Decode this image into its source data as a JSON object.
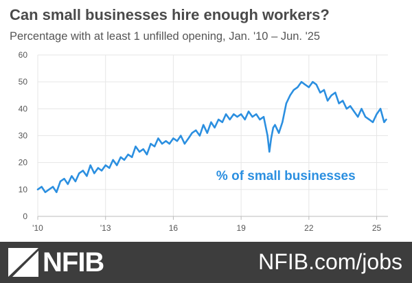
{
  "header": {
    "title": "Can small businesses hire enough workers?",
    "subtitle": "Percentage with at least 1 unfilled opening, Jan. '10 –  Jun. '25"
  },
  "footer": {
    "brand": "NFIB",
    "link": "NFIB.com/jobs"
  },
  "colors": {
    "line": "#2b8fe0",
    "grid": "#e6e6e6",
    "axis_text": "#555555",
    "footer_bg": "#3d3d3d"
  },
  "chart_data": {
    "type": "line",
    "title": "Can small businesses hire enough workers?",
    "subtitle": "Percentage with at least 1 unfilled opening, Jan. '10 –  Jun. '25",
    "xlabel": "",
    "ylabel": "",
    "ylim": [
      0,
      60
    ],
    "xlim": [
      2010,
      2025.5
    ],
    "yticks": [
      0,
      10,
      20,
      30,
      40,
      50,
      60
    ],
    "xticks": [
      {
        "value": 2010,
        "label": "'10"
      },
      {
        "value": 2013,
        "label": "'13"
      },
      {
        "value": 2016,
        "label": "16"
      },
      {
        "value": 2019,
        "label": "19"
      },
      {
        "value": 2022,
        "label": "22"
      },
      {
        "value": 2025,
        "label": "25"
      }
    ],
    "grid": true,
    "legend": "none",
    "annotations": [
      {
        "text": "% of small businesses",
        "x": 2017.9,
        "y": 13.5
      }
    ],
    "series": [
      {
        "name": "% of small businesses",
        "x": [
          2010.0,
          2010.17,
          2010.33,
          2010.5,
          2010.67,
          2010.83,
          2011.0,
          2011.17,
          2011.33,
          2011.5,
          2011.67,
          2011.83,
          2012.0,
          2012.17,
          2012.33,
          2012.5,
          2012.67,
          2012.83,
          2013.0,
          2013.17,
          2013.33,
          2013.5,
          2013.67,
          2013.83,
          2014.0,
          2014.17,
          2014.33,
          2014.5,
          2014.67,
          2014.83,
          2015.0,
          2015.17,
          2015.33,
          2015.5,
          2015.67,
          2015.83,
          2016.0,
          2016.17,
          2016.33,
          2016.5,
          2016.67,
          2016.83,
          2017.0,
          2017.17,
          2017.33,
          2017.5,
          2017.67,
          2017.83,
          2018.0,
          2018.17,
          2018.33,
          2018.5,
          2018.67,
          2018.83,
          2019.0,
          2019.17,
          2019.33,
          2019.5,
          2019.67,
          2019.83,
          2020.0,
          2020.17,
          2020.25,
          2020.33,
          2020.42,
          2020.5,
          2020.67,
          2020.83,
          2021.0,
          2021.17,
          2021.33,
          2021.5,
          2021.67,
          2021.83,
          2022.0,
          2022.17,
          2022.33,
          2022.5,
          2022.67,
          2022.83,
          2023.0,
          2023.17,
          2023.33,
          2023.5,
          2023.67,
          2023.83,
          2024.0,
          2024.17,
          2024.33,
          2024.5,
          2024.67,
          2024.83,
          2025.0,
          2025.17,
          2025.33,
          2025.42
        ],
        "y": [
          10,
          11,
          9,
          10,
          11,
          9,
          13,
          14,
          12,
          15,
          13,
          16,
          17,
          15,
          19,
          16,
          18,
          17,
          19,
          18,
          21,
          19,
          22,
          21,
          23,
          22,
          26,
          24,
          25,
          23,
          27,
          26,
          29,
          27,
          28,
          27,
          29,
          28,
          30,
          27,
          29,
          31,
          32,
          30,
          34,
          31,
          35,
          33,
          36,
          35,
          38,
          36,
          38,
          37,
          38,
          36,
          39,
          37,
          38,
          36,
          37,
          30,
          24,
          29,
          33,
          34,
          31,
          35,
          42,
          45,
          47,
          48,
          50,
          49,
          48,
          50,
          49,
          46,
          47,
          43,
          45,
          46,
          42,
          43,
          40,
          41,
          39,
          37,
          40,
          37,
          36,
          35,
          38,
          40,
          35,
          36
        ]
      }
    ]
  }
}
